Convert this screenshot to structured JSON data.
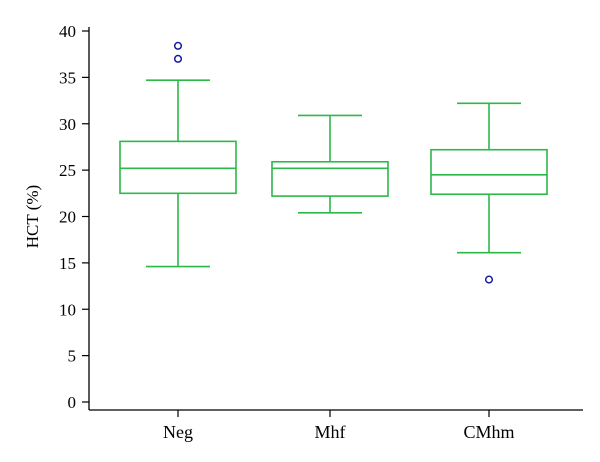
{
  "chart_data": {
    "type": "boxplot",
    "ylabel": "HCT (%)",
    "xlabel": "",
    "ylim": [
      0,
      40
    ],
    "yticks": [
      0,
      5,
      10,
      15,
      20,
      25,
      30,
      35,
      40
    ],
    "categories": [
      "Neg",
      "Mhf",
      "CMhm"
    ],
    "boxes": [
      {
        "category": "Neg",
        "whisker_low": 14.6,
        "q1": 22.5,
        "median": 25.2,
        "q3": 28.1,
        "whisker_high": 34.7,
        "outliers": [
          38.4,
          37.0
        ]
      },
      {
        "category": "Mhf",
        "whisker_low": 20.4,
        "q1": 22.2,
        "median": 25.2,
        "q3": 25.9,
        "whisker_high": 30.9,
        "outliers": []
      },
      {
        "category": "CMhm",
        "whisker_low": 16.1,
        "q1": 22.4,
        "median": 24.5,
        "q3": 27.2,
        "whisker_high": 32.2,
        "outliers": [
          13.2
        ]
      }
    ],
    "grid": false,
    "colors": {
      "box": "#2db84a",
      "outlier": "#1a1aa6",
      "axis": "#000000"
    }
  }
}
